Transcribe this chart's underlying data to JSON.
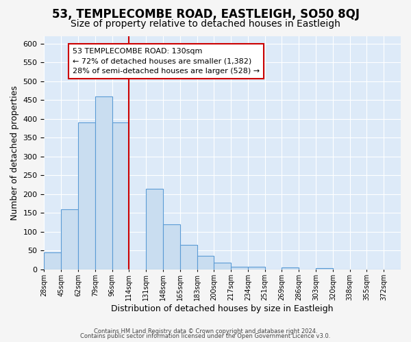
{
  "title": "53, TEMPLECOMBE ROAD, EASTLEIGH, SO50 8QJ",
  "subtitle": "Size of property relative to detached houses in Eastleigh",
  "xlabel": "Distribution of detached houses by size in Eastleigh",
  "ylabel": "Number of detached properties",
  "bin_labels": [
    "28sqm",
    "45sqm",
    "62sqm",
    "79sqm",
    "96sqm",
    "114sqm",
    "131sqm",
    "148sqm",
    "165sqm",
    "183sqm",
    "200sqm",
    "217sqm",
    "234sqm",
    "251sqm",
    "269sqm",
    "286sqm",
    "303sqm",
    "320sqm",
    "338sqm",
    "355sqm",
    "372sqm"
  ],
  "bar_heights": [
    45,
    160,
    390,
    460,
    390,
    0,
    215,
    120,
    65,
    37,
    18,
    8,
    8,
    0,
    5,
    0,
    3,
    0,
    0,
    0,
    0
  ],
  "bar_color": "#c9ddf0",
  "bar_edge_color": "#5b9bd5",
  "vline_x": 5,
  "vline_color": "#cc0000",
  "annotation_title": "53 TEMPLECOMBE ROAD: 130sqm",
  "annotation_line1": "← 72% of detached houses are smaller (1,382)",
  "annotation_line2": "28% of semi-detached houses are larger (528) →",
  "annotation_box_color": "#ffffff",
  "annotation_box_edge": "#cc0000",
  "footer1": "Contains HM Land Registry data © Crown copyright and database right 2024.",
  "footer2": "Contains public sector information licensed under the Open Government Licence v3.0.",
  "ylim": [
    0,
    620
  ],
  "yticks": [
    0,
    50,
    100,
    150,
    200,
    250,
    300,
    350,
    400,
    450,
    500,
    550,
    600
  ],
  "background_color": "#ddeaf8",
  "grid_color": "#ffffff",
  "fig_background": "#f5f5f5",
  "title_fontsize": 12,
  "subtitle_fontsize": 10
}
